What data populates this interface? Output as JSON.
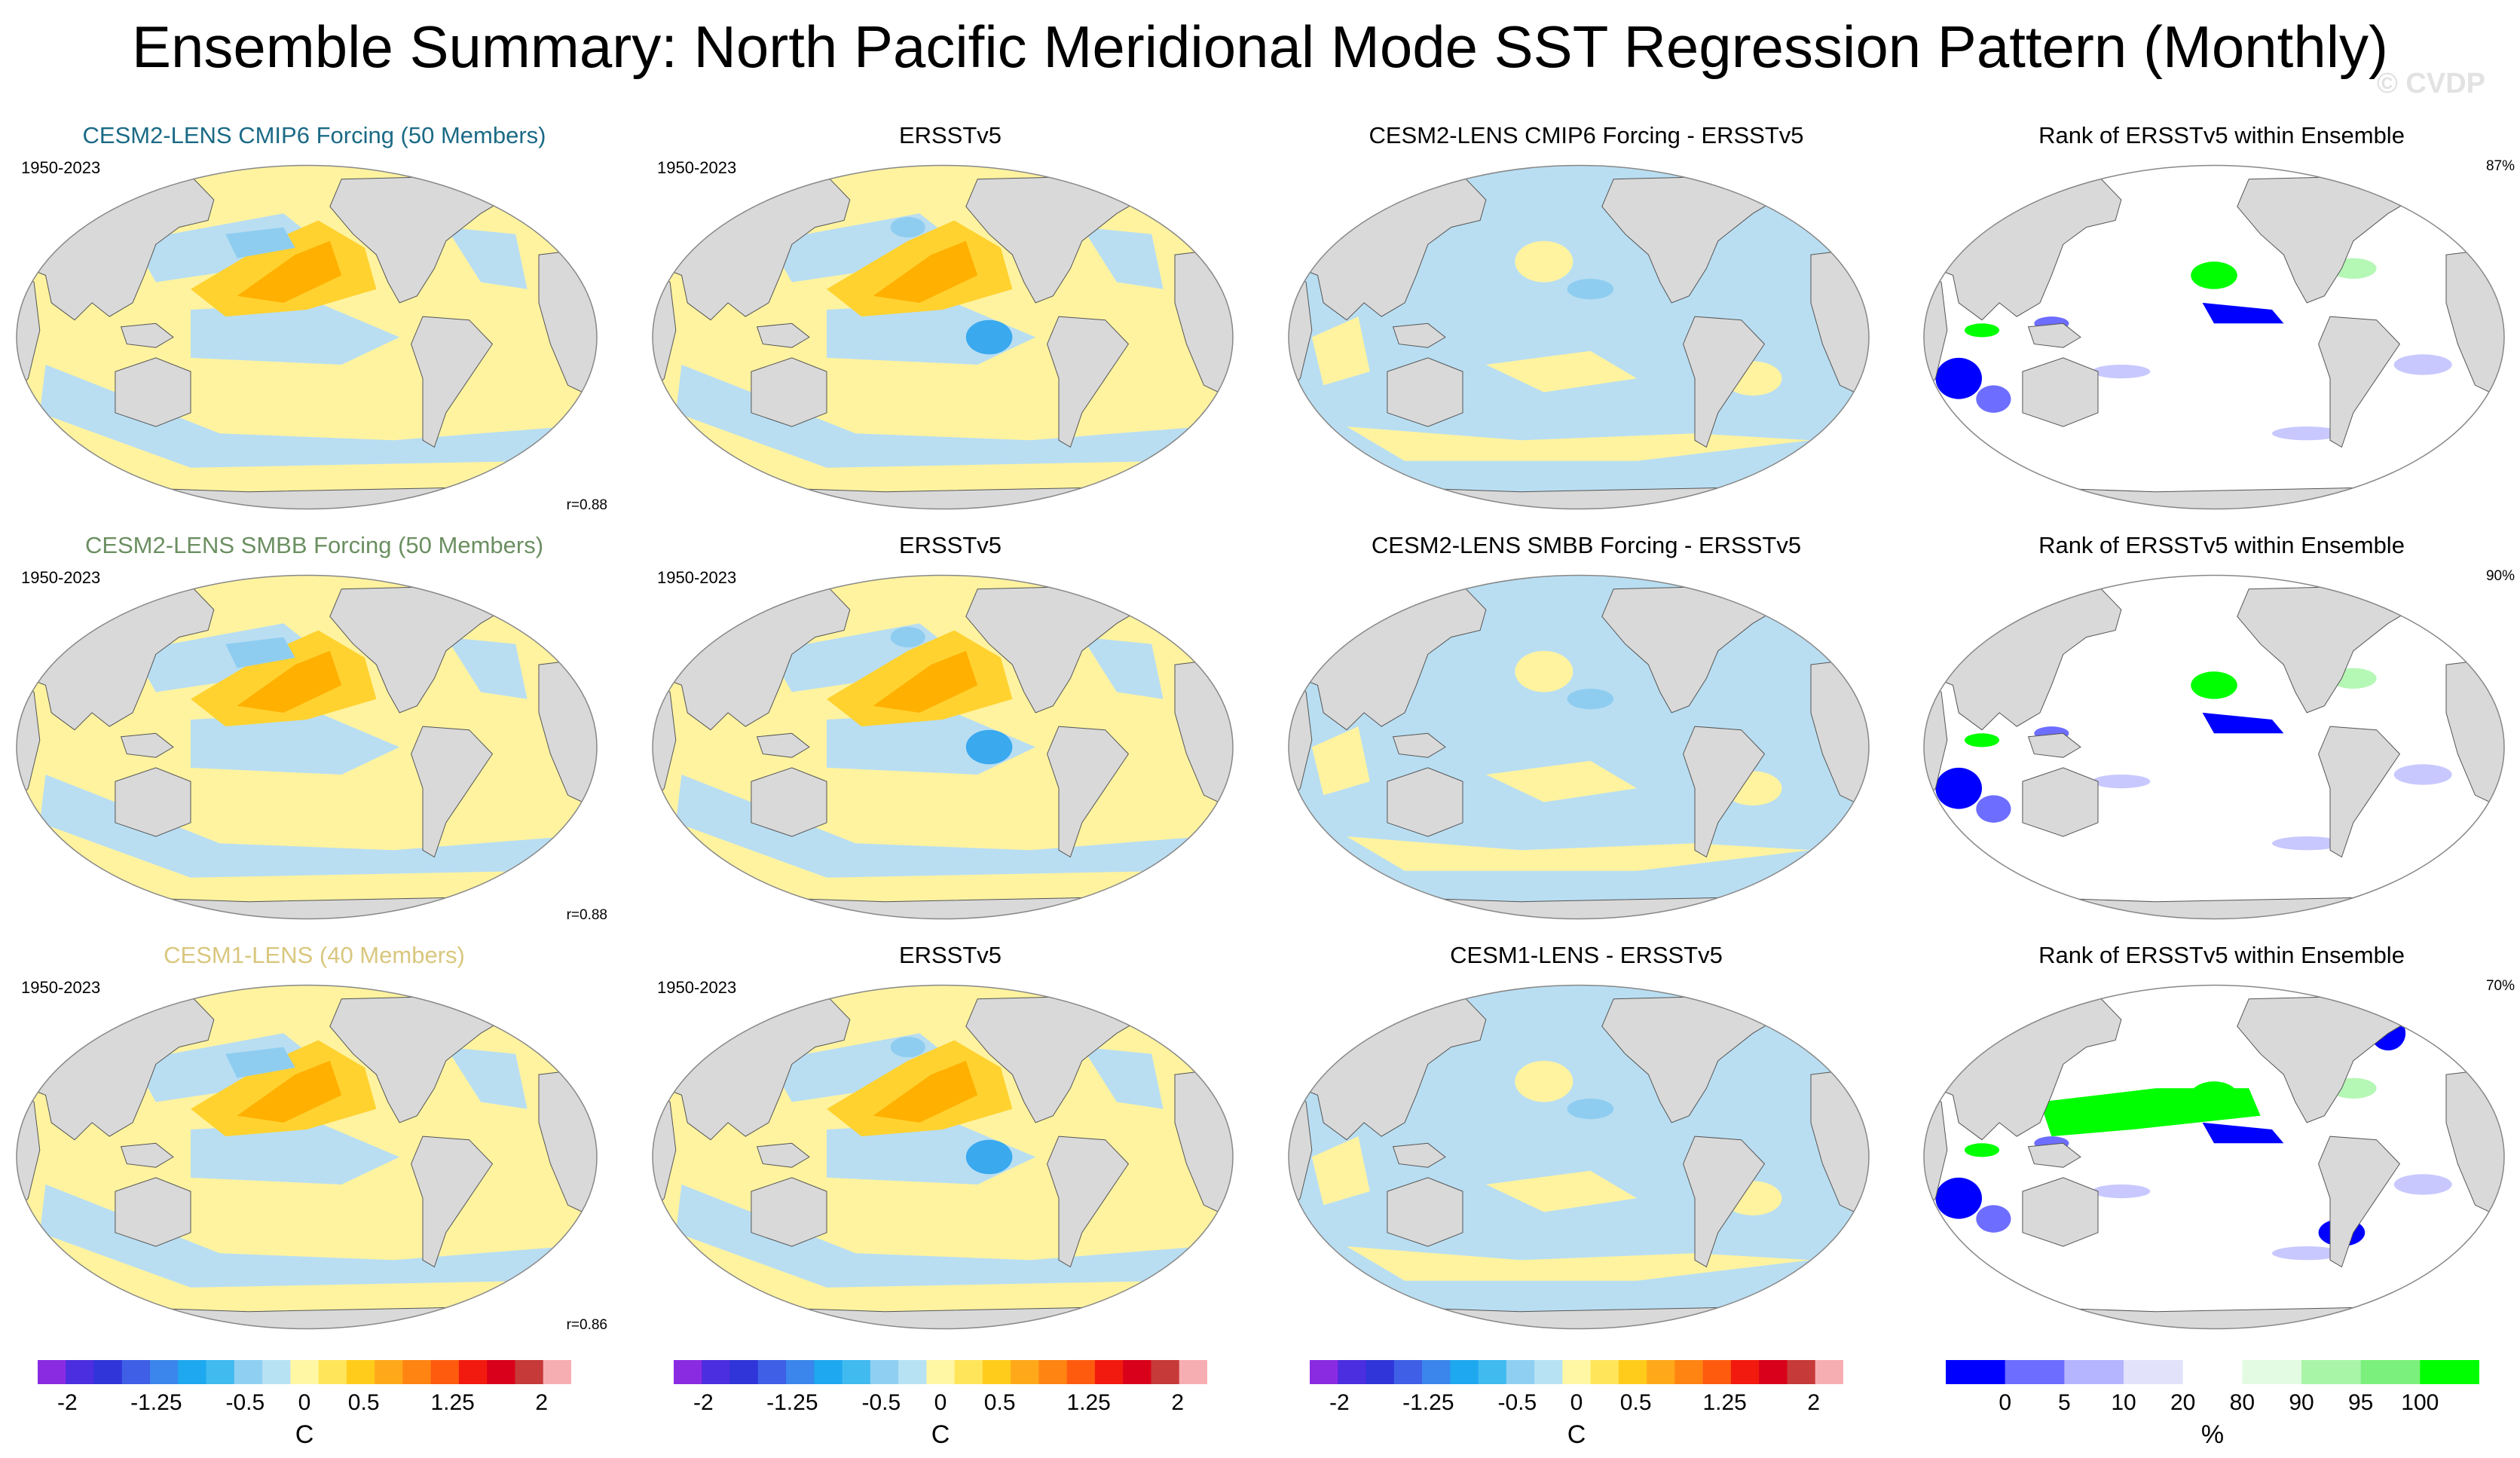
{
  "header": {
    "title": "Ensemble Summary: North Pacific Meridional Mode SST Regression Pattern (Monthly)",
    "watermark": "© CVDP"
  },
  "chart_data": {
    "type": "heatmap",
    "projection": "robinson, Pacific-centered",
    "rows": [
      {
        "model": {
          "title": "CESM2-LENS CMIP6 Forcing (50 Members)",
          "title_color": "#1b6a86",
          "period": "1950-2023",
          "pattern_corr": "r=0.88"
        },
        "observation": {
          "title": "ERSSTv5",
          "period": "1950-2023"
        },
        "difference": {
          "title": "CESM2-LENS CMIP6 Forcing - ERSSTv5"
        },
        "rank": {
          "title": "Rank of ERSSTv5 within Ensemble",
          "pct_within": "87%"
        }
      },
      {
        "model": {
          "title": "CESM2-LENS SMBB Forcing (50 Members)",
          "title_color": "#6b8f61",
          "period": "1950-2023",
          "pattern_corr": "r=0.88"
        },
        "observation": {
          "title": "ERSSTv5",
          "period": "1950-2023"
        },
        "difference": {
          "title": "CESM2-LENS SMBB Forcing - ERSSTv5"
        },
        "rank": {
          "title": "Rank of ERSSTv5 within Ensemble",
          "pct_within": "90%"
        }
      },
      {
        "model": {
          "title": "CESM1-LENS (40 Members)",
          "title_color": "#d9c77e",
          "period": "1950-2023",
          "pattern_corr": "r=0.86"
        },
        "observation": {
          "title": "ERSSTv5",
          "period": "1950-2023"
        },
        "difference": {
          "title": "CESM1-LENS - ERSSTv5"
        },
        "rank": {
          "title": "Rank of ERSSTv5 within Ensemble",
          "pct_within": "70%"
        }
      }
    ],
    "sst_colorbar": {
      "unit": "C",
      "tick_labels": [
        "-2",
        "-1.25",
        "-0.5",
        "0",
        "0.5",
        "1.25",
        "2"
      ],
      "tick_values": [
        -2,
        -1.25,
        -0.5,
        0,
        0.5,
        1.25,
        2
      ],
      "range": [
        -2.25,
        2.25
      ],
      "colors": [
        "#8a2be2",
        "#4b2ee0",
        "#2f35d8",
        "#3e5fe6",
        "#3a86ec",
        "#1ea8ef",
        "#41baf0",
        "#8fd0f2",
        "#b7e2f4",
        "#fff7a4",
        "#ffe55a",
        "#ffcc1c",
        "#ffa81a",
        "#ff8412",
        "#ff5b0f",
        "#f21a0e",
        "#d8001a",
        "#c73a3a",
        "#f7aeb2"
      ]
    },
    "rank_colorbar": {
      "unit": "%",
      "tick_labels": [
        "0",
        "5",
        "10",
        "20",
        "80",
        "90",
        "95",
        "100"
      ],
      "colors": [
        "#0000ff",
        "#6d6dff",
        "#b4b4ff",
        "#e2e2fb",
        "#ffffff",
        "#e2fbe2",
        "#a8f5a8",
        "#7cf07c",
        "#00ff00"
      ]
    },
    "map_colors": {
      "land": "#d9d9d9",
      "coast": "#555555",
      "warm_weak": "#fff3a0",
      "warm_mid": "#ffd230",
      "warm_strong": "#ffb000",
      "cool_weak": "#b9def2",
      "cool_mid": "#8fcdf0",
      "cool_strong": "#3aa9ee",
      "rank_low": "#0000ff",
      "rank_low_mid": "#6d6dff",
      "rank_low_weak": "#c8c8ff",
      "rank_high": "#00ff00",
      "rank_high_weak": "#b5f7b5"
    }
  }
}
